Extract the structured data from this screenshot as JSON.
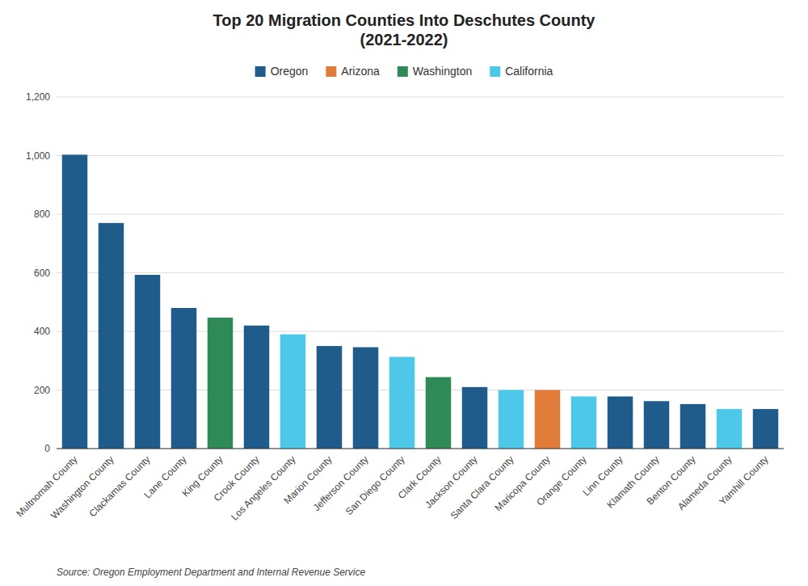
{
  "chart_data": {
    "type": "bar",
    "title": "Top 20 Migration Counties Into Deschutes County\n(2021-2022)",
    "annotations": [
      "Source: Oregon Employment Department and Internal Revenue Service"
    ],
    "categories": [
      "Multnomah County",
      "Washington County",
      "Clackamas County",
      "Lane County",
      "King County",
      "Crook County",
      "Los Angeles County",
      "Marion County",
      "Jefferson County",
      "San Diego County",
      "Clark County",
      "Jackson County",
      "Santa Clara County",
      "Maricopa County",
      "Orange County",
      "Linn County",
      "Klamath County",
      "Benton County",
      "Alameda County",
      "Yamhill County"
    ],
    "values": [
      1003,
      770,
      593,
      480,
      447,
      420,
      390,
      350,
      346,
      313,
      244,
      210,
      200,
      200,
      178,
      178,
      162,
      152,
      135,
      135
    ],
    "colors": [
      "#1F5C8B",
      "#1F5C8B",
      "#1F5C8B",
      "#1F5C8B",
      "#2E8B57",
      "#1F5C8B",
      "#4EC8E8",
      "#1F5C8B",
      "#1F5C8B",
      "#4EC8E8",
      "#2E8B57",
      "#1F5C8B",
      "#4EC8E8",
      "#E07B39",
      "#4EC8E8",
      "#1F5C8B",
      "#1F5C8B",
      "#1F5C8B",
      "#4EC8E8",
      "#1F5C8B"
    ],
    "groups": [
      {
        "name": "Oregon",
        "color": "#1F5C8B"
      },
      {
        "name": "Arizona",
        "color": "#E07B39"
      },
      {
        "name": "Washington",
        "color": "#2E8B57"
      },
      {
        "name": "California",
        "color": "#4EC8E8"
      }
    ],
    "legend": "top",
    "ylim": [
      0,
      1200
    ],
    "yticks": [
      0,
      200,
      400,
      600,
      800,
      {
        "value": 1000,
        "label": "1,000"
      },
      {
        "value": 1200,
        "label": "1,200"
      }
    ],
    "grid": true
  }
}
